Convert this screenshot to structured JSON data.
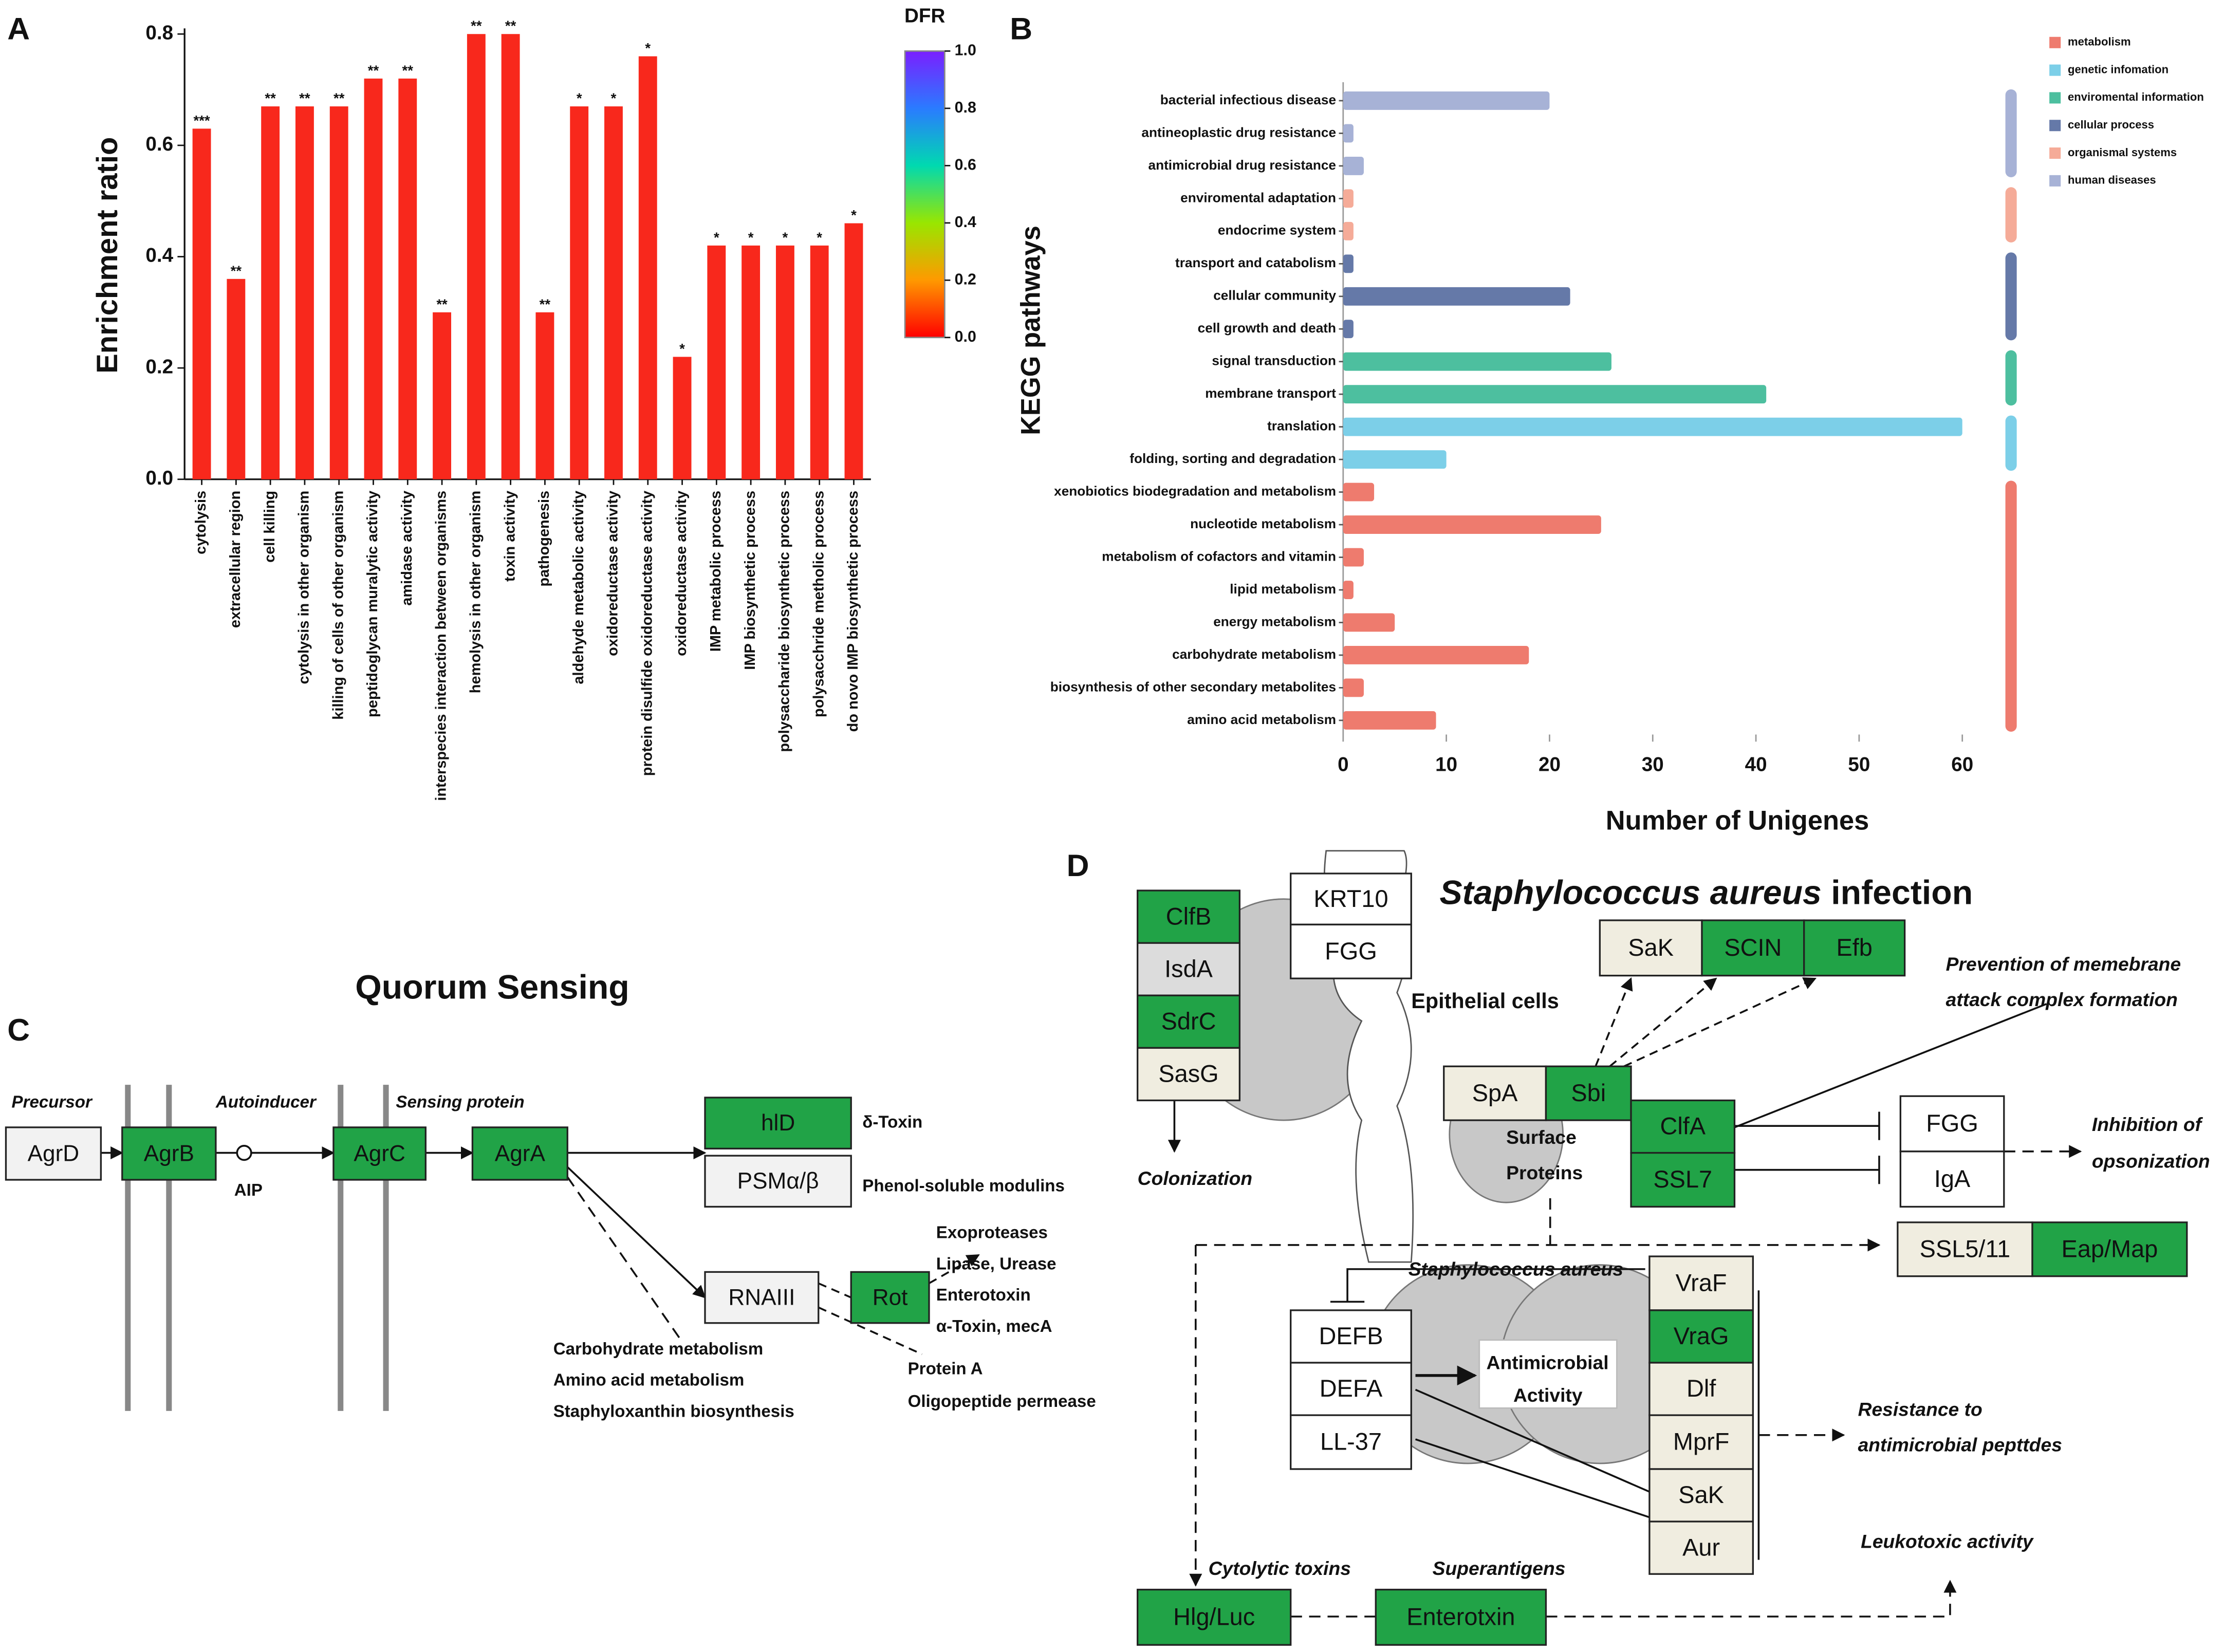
{
  "panel_labels": [
    "A",
    "B",
    "C",
    "D"
  ],
  "chart_data": [
    {
      "type": "bar",
      "y_label": "Enrichment ratio",
      "categories": [
        "cytolysis",
        "extracellular region",
        "cell killing",
        "cytolysis in other organism",
        "killing of cells of other organism",
        "peptidoglycan muralytic activity",
        "amidase activity",
        "interspecies interaction between organisms",
        "hemolysis in other organism",
        "toxin activity",
        "pathogenesis",
        "aldehyde metabolic activity",
        "oxidoreductase activity",
        "protein disulfide oxidoreductase activity",
        "oxidoreductase activity",
        "IMP metabolic process",
        "IMP biosynthetic process",
        "polysaccharide biosynthetic process",
        "polysacchride metholic process",
        "do novo IMP biosynthetic process"
      ],
      "values": [
        0.63,
        0.36,
        0.67,
        0.67,
        0.67,
        0.72,
        0.72,
        0.3,
        0.8,
        0.8,
        0.3,
        0.67,
        0.67,
        0.76,
        0.22,
        0.42,
        0.42,
        0.42,
        0.42,
        0.46
      ],
      "significance": [
        "***",
        "**",
        "**",
        "**",
        "**",
        "**",
        "**",
        "**",
        "**",
        "**",
        "**",
        "*",
        "*",
        "*",
        "*",
        "*",
        "*",
        "*",
        "*",
        "*"
      ],
      "color": "#f8281c",
      "ylim": [
        0,
        0.8
      ],
      "yticks": [
        {
          "value": 0,
          "label": "0.0"
        },
        {
          "value": 0.2,
          "label": "0.2"
        },
        {
          "value": 0.4,
          "label": "0.4"
        },
        {
          "value": 0.6,
          "label": "0.6"
        },
        {
          "value": 0.8,
          "label": "0.8"
        }
      ],
      "colorbar": {
        "title": "DFR",
        "lim": [
          0,
          1
        ],
        "ticks": [
          {
            "value": 0,
            "label": "0.0"
          },
          {
            "value": 0.2,
            "label": "0.2"
          },
          {
            "value": 0.4,
            "label": "0.4"
          },
          {
            "value": 0.6,
            "label": "0.6"
          },
          {
            "value": 0.8,
            "label": "0.8"
          },
          {
            "value": 1,
            "label": "1.0"
          }
        ]
      }
    },
    {
      "type": "hbar",
      "x_label": "Number of Unigenes",
      "y_label": "KEGG pathways",
      "categories": [
        "bacterial infectious disease",
        "antineoplastic drug resistance",
        "antimicrobial drug resistance",
        "enviromental adaptation",
        "endocrime system",
        "transport and catabolism",
        "cellular community",
        "cell growth and death",
        "signal transduction",
        "membrane transport",
        "translation",
        "folding, sorting and degradation",
        "xenobiotics biodegradation and metabolism",
        "nucleotide metabolism",
        "metabolism of cofactors and vitamin",
        "lipid metabolism",
        "energy metabolism",
        "carbohydrate metabolism",
        "biosynthesis of other secondary metabolites",
        "amino acid metabolism"
      ],
      "series": [
        {
          "name": "metabolism",
          "color": "#ee7b6e",
          "values": [
            null,
            null,
            null,
            null,
            null,
            null,
            null,
            null,
            null,
            null,
            null,
            null,
            3,
            25,
            2,
            1,
            5,
            18,
            2,
            9
          ]
        },
        {
          "name": "genetic infomation",
          "color": "#7ccfe8",
          "values": [
            null,
            null,
            null,
            null,
            null,
            null,
            null,
            null,
            null,
            null,
            60,
            10,
            null,
            null,
            null,
            null,
            null,
            null,
            null,
            null
          ]
        },
        {
          "name": "enviromental information",
          "color": "#4dbf9f",
          "values": [
            null,
            null,
            null,
            null,
            null,
            null,
            null,
            null,
            26,
            41,
            null,
            null,
            null,
            null,
            null,
            null,
            null,
            null,
            null,
            null
          ]
        },
        {
          "name": "cellular process",
          "color": "#6579a8",
          "values": [
            null,
            null,
            null,
            null,
            null,
            1,
            22,
            1,
            null,
            null,
            null,
            null,
            null,
            null,
            null,
            null,
            null,
            null,
            null,
            null
          ]
        },
        {
          "name": "organismal systems",
          "color": "#f5ab98",
          "values": [
            null,
            null,
            null,
            1,
            1,
            null,
            null,
            null,
            null,
            null,
            null,
            null,
            null,
            null,
            null,
            null,
            null,
            null,
            null,
            null
          ]
        },
        {
          "name": "human diseases",
          "color": "#a7b2d6",
          "values": [
            20,
            1,
            2,
            null,
            null,
            null,
            null,
            null,
            null,
            null,
            null,
            null,
            null,
            null,
            null,
            null,
            null,
            null,
            null,
            null
          ]
        }
      ],
      "xlim": [
        0,
        65
      ],
      "xticks": [
        0,
        10,
        20,
        30,
        40,
        50,
        60
      ]
    }
  ],
  "diagram_c": {
    "title": "Quorum Sensing",
    "stages": [
      "Precursor",
      "Autoinducer",
      "Sensing protein"
    ],
    "nodes": [
      "AgrD",
      "AgrB",
      "AgrC",
      "AgrA",
      "hlD",
      "PSMα/β",
      "RNAIII",
      "Rot"
    ],
    "labels": [
      "AIP",
      "δ-Toxin",
      "Phenol-soluble modulins",
      "Exoproteases",
      "Lipase, Urease",
      "Enterotoxin",
      "α-Toxin, mecA",
      "Protein A",
      "Oligopeptide permease",
      "Carbohydrate metabolism",
      "Amino acid metabolism",
      "Staphyloxanthin biosynthesis"
    ]
  },
  "diagram_d": {
    "title_species": "Staphylococcus aureus",
    "title_rest": " infection",
    "nodes": [
      "ClfB",
      "IsdA",
      "SdrC",
      "SasG",
      "KRT10",
      "FGG",
      "SaK",
      "SCIN",
      "Efb",
      "SpA",
      "Sbi",
      "ClfA",
      "SSL7",
      "FGG",
      "IgA",
      "SSL5/11",
      "Eap/Map",
      "DEFB",
      "DEFA",
      "LL-37",
      "VraF",
      "VraG",
      "Dlf",
      "MprF",
      "SaK",
      "Aur",
      "Hlg/Luc",
      "Enterotxin"
    ],
    "labels": [
      "Epithelial cells",
      "Colonization",
      "Prevention of memebrane",
      "attack complex formation",
      "Surface",
      "Proteins",
      "Inhibition of",
      "opsonization",
      "Staphylococcus aureus",
      "Antimicrobial",
      "Activity",
      "Resistance to",
      "antimicrobial pepttdes",
      "Leukotoxic activity",
      "Cytolytic toxins",
      "Superantigens"
    ]
  }
}
